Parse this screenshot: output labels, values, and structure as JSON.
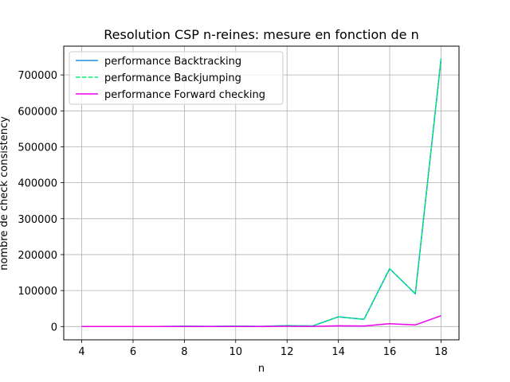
{
  "chart_data": {
    "type": "line",
    "title": "Resolution CSP n-reines: mesure en fonction de n",
    "xlabel": "n",
    "ylabel": "nombre de check consistency",
    "x": [
      4,
      5,
      6,
      7,
      8,
      9,
      10,
      11,
      12,
      13,
      14,
      15,
      16,
      17,
      18
    ],
    "xlim": [
      3.3,
      18.7
    ],
    "ylim": [
      -37000,
      780000
    ],
    "xticks": [
      4,
      6,
      8,
      10,
      12,
      14,
      16,
      18
    ],
    "xtick_labels": [
      "4",
      "6",
      "8",
      "10",
      "12",
      "14",
      "16",
      "18"
    ],
    "yticks": [
      0,
      100000,
      200000,
      300000,
      400000,
      500000,
      600000,
      700000
    ],
    "ytick_labels": [
      "0",
      "100000",
      "200000",
      "300000",
      "400000",
      "500000",
      "600000",
      "700000"
    ],
    "grid": true,
    "legend_position": "top-left",
    "series": [
      {
        "name": "performance Backtracking",
        "color": "#1f8fe0",
        "dash": "solid",
        "values": [
          40,
          150,
          80,
          200,
          900,
          350,
          1000,
          500,
          2600,
          1500,
          27000,
          20000,
          161000,
          91000,
          745000
        ]
      },
      {
        "name": "performance Backjumping",
        "color": "#00ee77",
        "dash": "dashed",
        "values": [
          40,
          150,
          80,
          200,
          900,
          350,
          1000,
          500,
          2600,
          1500,
          27000,
          20000,
          161000,
          91000,
          745000
        ]
      },
      {
        "name": "performance Forward checking",
        "color": "#ee00ee",
        "dash": "solid",
        "values": [
          20,
          60,
          40,
          80,
          200,
          120,
          300,
          150,
          700,
          400,
          2000,
          1500,
          8000,
          4500,
          30000
        ]
      }
    ]
  }
}
